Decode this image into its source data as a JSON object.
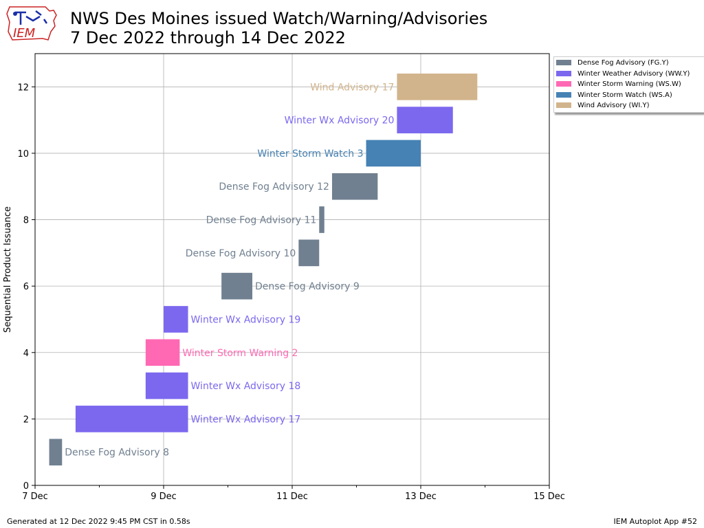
{
  "header": {
    "title_line1": "NWS Des Moines issued Watch/Warning/Advisories",
    "title_line2": "7 Dec 2022 through 14 Dec 2022",
    "logo_text": "IEM"
  },
  "footer": {
    "left": "Generated at 12 Dec 2022 9:45 PM CST in 0.58s",
    "right": "IEM Autoplot App #52"
  },
  "legend": [
    {
      "label": "Dense Fog Advisory (FG.Y)",
      "color": "#708090"
    },
    {
      "label": "Winter Weather Advisory (WW.Y)",
      "color": "#7b68ee"
    },
    {
      "label": "Winter Storm Warning (WS.W)",
      "color": "#ff69b4"
    },
    {
      "label": "Winter Storm Watch (WS.A)",
      "color": "#4682b4"
    },
    {
      "label": "Wind Advisory (WI.Y)",
      "color": "#d2b48c"
    }
  ],
  "chart_data": {
    "type": "bar",
    "orientation": "horizontal-timeline",
    "ylabel": "Sequential Product Issuance",
    "xlabel": "",
    "xlim": [
      0,
      8
    ],
    "ylim": [
      0,
      13
    ],
    "x_ticks": [
      {
        "value": 0,
        "label": "7 Dec"
      },
      {
        "value": 2,
        "label": "9 Dec"
      },
      {
        "value": 4,
        "label": "11 Dec"
      },
      {
        "value": 6,
        "label": "13 Dec"
      },
      {
        "value": 8,
        "label": "15 Dec"
      }
    ],
    "y_ticks": [
      0,
      2,
      4,
      6,
      8,
      10,
      12
    ],
    "grid": true,
    "legend_position": "outside-right-top",
    "events": [
      {
        "y": 1,
        "start": 0.22,
        "end": 0.42,
        "type": "FG.Y",
        "color": "#708090",
        "label": "Dense Fog Advisory 8",
        "label_side": "right"
      },
      {
        "y": 2,
        "start": 0.63,
        "end": 2.38,
        "type": "WW.Y",
        "color": "#7b68ee",
        "label": "Winter Wx Advisory 17",
        "label_side": "right"
      },
      {
        "y": 3,
        "start": 1.72,
        "end": 2.38,
        "type": "WW.Y",
        "color": "#7b68ee",
        "label": "Winter Wx Advisory 18",
        "label_side": "right"
      },
      {
        "y": 4,
        "start": 1.72,
        "end": 2.25,
        "type": "WS.W",
        "color": "#ff69b4",
        "label": "Winter Storm Warning 2",
        "label_side": "right"
      },
      {
        "y": 5,
        "start": 2.0,
        "end": 2.38,
        "type": "WW.Y",
        "color": "#7b68ee",
        "label": "Winter Wx Advisory 19",
        "label_side": "right"
      },
      {
        "y": 6,
        "start": 2.9,
        "end": 3.38,
        "type": "FG.Y",
        "color": "#708090",
        "label": "Dense Fog Advisory 9",
        "label_side": "right"
      },
      {
        "y": 7,
        "start": 4.1,
        "end": 4.42,
        "type": "FG.Y",
        "color": "#708090",
        "label": "Dense Fog Advisory 10",
        "label_side": "left"
      },
      {
        "y": 8,
        "start": 4.42,
        "end": 4.5,
        "type": "FG.Y",
        "color": "#708090",
        "label": "Dense Fog Advisory 11",
        "label_side": "left"
      },
      {
        "y": 9,
        "start": 4.62,
        "end": 5.33,
        "type": "FG.Y",
        "color": "#708090",
        "label": "Dense Fog Advisory 12",
        "label_side": "left"
      },
      {
        "y": 10,
        "start": 5.15,
        "end": 6.0,
        "type": "WS.A",
        "color": "#4682b4",
        "label": "Winter Storm Watch 3",
        "label_side": "left"
      },
      {
        "y": 11,
        "start": 5.63,
        "end": 6.5,
        "type": "WW.Y",
        "color": "#7b68ee",
        "label": "Winter Wx Advisory 20",
        "label_side": "left"
      },
      {
        "y": 12,
        "start": 5.63,
        "end": 6.88,
        "type": "WI.Y",
        "color": "#d2b48c",
        "label": "Wind Advisory 17",
        "label_side": "left"
      }
    ]
  }
}
